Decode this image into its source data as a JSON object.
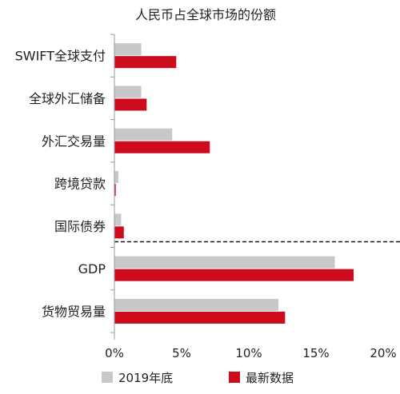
{
  "chart_data": {
    "type": "bar",
    "orientation": "horizontal",
    "title": "人民币占全球市场的份额",
    "categories": [
      "SWIFT全球支付",
      "全球外汇储备",
      "外汇交易量",
      "跨境贷款",
      "国际债券",
      "GDP",
      "货物贸易量"
    ],
    "series": [
      {
        "name": "2019年底",
        "color": "#c8c8c8",
        "values": [
          2.0,
          2.0,
          4.3,
          0.3,
          0.5,
          16.4,
          12.2
        ]
      },
      {
        "name": "最新数据",
        "color": "#cc0c1c",
        "values": [
          4.6,
          2.4,
          7.1,
          0.1,
          0.7,
          17.8,
          12.7
        ]
      }
    ],
    "xlim": [
      0,
      20
    ],
    "xticks": [
      0,
      5,
      10,
      15,
      20
    ],
    "xtick_labels": [
      "0%",
      "5%",
      "10%",
      "15%",
      "20%"
    ],
    "separator_after_category": 4,
    "legend_position": "bottom"
  }
}
